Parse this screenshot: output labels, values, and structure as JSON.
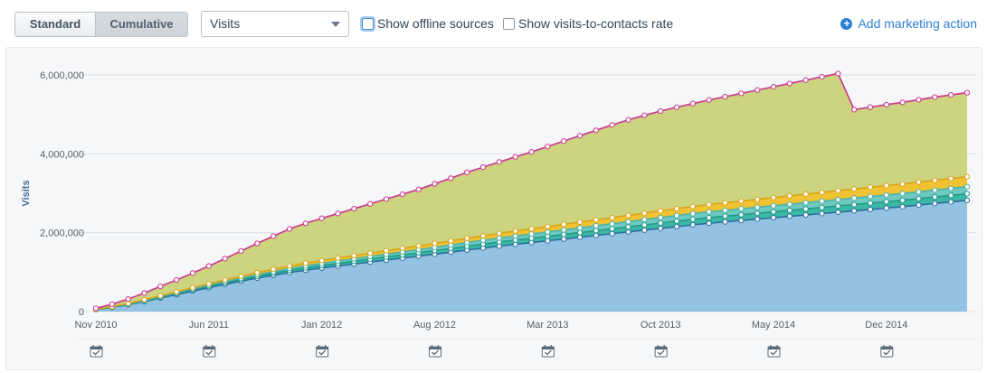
{
  "toolbar": {
    "view_toggle": {
      "standard": "Standard",
      "cumulative": "Cumulative",
      "active": "cumulative"
    },
    "metric_select": {
      "value": "Visits"
    },
    "show_offline": {
      "label": "Show offline sources",
      "checked": false
    },
    "show_rate": {
      "label": "Show visits-to-contacts rate",
      "checked": false
    },
    "add_action": {
      "label": "Add marketing action",
      "icon": "plus-circle-icon"
    }
  },
  "chart_data": {
    "type": "area",
    "stacked": true,
    "ylabel": "Visits",
    "ylim": [
      0,
      6000000
    ],
    "yticks": [
      0,
      2000000,
      4000000,
      6000000
    ],
    "ytick_labels": [
      "0",
      "2,000,000",
      "4,000,000",
      "6,000,000"
    ],
    "xtick_labels": [
      "Nov 2010",
      "Jun 2011",
      "Jan 2012",
      "Aug 2012",
      "Mar 2013",
      "Oct 2013",
      "May 2014",
      "Dec 2014"
    ],
    "x": [
      "2010-11",
      "2010-12",
      "2011-01",
      "2011-02",
      "2011-03",
      "2011-04",
      "2011-05",
      "2011-06",
      "2011-07",
      "2011-08",
      "2011-09",
      "2011-10",
      "2011-11",
      "2011-12",
      "2012-01",
      "2012-02",
      "2012-03",
      "2012-04",
      "2012-05",
      "2012-06",
      "2012-07",
      "2012-08",
      "2012-09",
      "2012-10",
      "2012-11",
      "2012-12",
      "2013-01",
      "2013-02",
      "2013-03",
      "2013-04",
      "2013-05",
      "2013-06",
      "2013-07",
      "2013-08",
      "2013-09",
      "2013-10",
      "2013-11",
      "2013-12",
      "2014-01",
      "2014-02",
      "2014-03",
      "2014-04",
      "2014-05",
      "2014-06",
      "2014-07",
      "2014-08",
      "2014-09",
      "2014-10",
      "2014-11",
      "2014-12",
      "2015-01",
      "2015-02",
      "2015-03",
      "2015-04",
      "2015-05"
    ],
    "totals": [
      0,
      105000,
      195000,
      300000,
      400000,
      510000,
      620000,
      730000,
      850000,
      970000,
      1090000,
      1200000,
      1310000,
      1400000,
      1480000,
      1560000,
      1650000,
      1730000,
      1810000,
      1880000,
      1950000,
      2030000,
      2110000,
      2190000,
      2280000,
      2370000,
      2460000,
      2540000,
      2620000,
      2700000,
      2780000,
      2860000,
      2950000,
      3040000,
      3130000,
      3220000,
      3300000,
      3380000,
      3460000,
      3540000,
      3620000,
      3700000,
      3780000,
      3860000,
      3940000,
      4020000,
      4100000,
      4180000,
      4260000,
      4340000,
      4410000,
      4480000,
      4550000,
      4610000,
      4660000
    ],
    "series": [
      {
        "color": "#94c2e3",
        "line": "#2a6f9f"
      },
      {
        "color": "#3db8a6",
        "line": "#1f9a87"
      },
      {
        "color": "#6fc9c0",
        "line": "#4fb2a8"
      },
      {
        "color": "#f1c232",
        "line": "#d9a51a"
      },
      {
        "color": "#cdd47f",
        "line": "#98a41c"
      },
      {
        "color": "#e05da8",
        "line": "#d0389b"
      }
    ],
    "series_values": [
      [
        50000,
        105000,
        175000,
        255000,
        345000,
        430000,
        520000,
        605000,
        690000,
        770000,
        850000,
        920000,
        990000,
        1050000,
        1105000,
        1155000,
        1205000,
        1255000,
        1305000,
        1355000,
        1405000,
        1455000,
        1505000,
        1560000,
        1610000,
        1660000,
        1705000,
        1750000,
        1795000,
        1840000,
        1885000,
        1930000,
        1975000,
        2020000,
        2065000,
        2110000,
        2155000,
        2200000,
        2240000,
        2275000,
        2310000,
        2345000,
        2380000,
        2415000,
        2450000,
        2485000,
        2520000,
        2555000,
        2590000,
        2625000,
        2660000,
        2700000,
        2740000,
        2780000,
        2820000
      ],
      [
        5000,
        8000,
        12000,
        16000,
        20000,
        25000,
        30000,
        34000,
        38000,
        42000,
        46000,
        50000,
        54000,
        58000,
        62000,
        66000,
        70000,
        74000,
        78000,
        82000,
        86000,
        90000,
        94000,
        98000,
        101000,
        104000,
        107000,
        110000,
        113000,
        116000,
        119000,
        122000,
        125000,
        128000,
        131000,
        134000,
        137000,
        139000,
        141000,
        143000,
        145000,
        147000,
        149000,
        151000,
        153000,
        155000,
        157000,
        159000,
        161000,
        162000,
        163000,
        164000,
        165000,
        166000,
        167000
      ],
      [
        2000,
        5000,
        8000,
        12000,
        16000,
        20000,
        24000,
        28000,
        32000,
        36000,
        40000,
        44000,
        48000,
        52000,
        56000,
        60000,
        64000,
        68000,
        72000,
        76000,
        80000,
        84000,
        88000,
        92000,
        96000,
        100000,
        104000,
        108000,
        112000,
        116000,
        120000,
        124000,
        128000,
        132000,
        136000,
        140000,
        144000,
        146000,
        148000,
        150000,
        152000,
        154000,
        156000,
        158000,
        160000,
        162000,
        164000,
        166000,
        168000,
        170000,
        172000,
        174000,
        176000,
        178000,
        180000
      ],
      [
        3000,
        8000,
        12000,
        17000,
        22000,
        28000,
        33000,
        38000,
        43000,
        48000,
        53000,
        58000,
        63000,
        68000,
        72000,
        76000,
        80000,
        84000,
        88000,
        92000,
        96000,
        100000,
        105000,
        110000,
        115000,
        120000,
        125000,
        130000,
        135000,
        140000,
        145000,
        150000,
        155000,
        160000,
        165000,
        170000,
        175000,
        180000,
        185000,
        190000,
        195000,
        200000,
        205000,
        210000,
        215000,
        220000,
        225000,
        230000,
        235000,
        238000,
        241000,
        244000,
        247000,
        250000,
        253000
      ],
      [
        20000,
        60000,
        110000,
        170000,
        235000,
        300000,
        370000,
        450000,
        540000,
        640000,
        740000,
        840000,
        940000,
        1010000,
        1070000,
        1130000,
        1190000,
        1250000,
        1310000,
        1370000,
        1430000,
        1510000,
        1590000,
        1670000,
        1740000,
        1810000,
        1880000,
        1950000,
        2030000,
        2110000,
        2190000,
        2270000,
        2350000,
        2420000,
        2480000,
        2530000,
        2570000,
        2610000,
        2650000,
        2690000,
        2730000,
        2770000,
        2810000,
        2850000,
        2890000,
        2930000,
        2970000,
        2010000,
        2030000,
        2050000,
        2070000,
        2090000,
        2110000,
        2120000,
        2130000
      ],
      [
        0,
        0,
        0,
        0,
        0,
        0,
        0,
        0,
        0,
        0,
        0,
        0,
        0,
        0,
        0,
        0,
        0,
        0,
        0,
        0,
        0,
        0,
        0,
        0,
        0,
        0,
        0,
        0,
        0,
        0,
        0,
        0,
        0,
        0,
        0,
        0,
        0,
        0,
        0,
        0,
        0,
        0,
        0,
        0,
        0,
        0,
        0,
        0,
        0,
        0,
        0,
        0,
        0,
        0,
        0
      ]
    ],
    "marker_icon": "calendar-check-icon",
    "action_markers": [
      "2010-11",
      "2011-06",
      "2012-01",
      "2012-08",
      "2013-03",
      "2013-10",
      "2014-05",
      "2014-12"
    ],
    "grid": true,
    "legend": "none"
  }
}
